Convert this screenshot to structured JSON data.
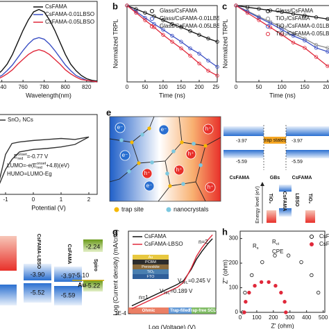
{
  "chart_data": [
    {
      "type": "line",
      "x": [
        735,
        740,
        745,
        750,
        755,
        760,
        765,
        770,
        775,
        780,
        785,
        790,
        795,
        800,
        805,
        810,
        815,
        820,
        825,
        830
      ],
      "xlim": [
        735,
        830
      ],
      "xticks": [
        740,
        760,
        780,
        800,
        820
      ],
      "ylim": [
        0,
        1
      ],
      "yticks": [],
      "xlabel": "Wavelength(nm)",
      "legend": "upper right",
      "series": [
        {
          "name": "CsFAMA",
          "color": "#111111",
          "values": [
            0.08,
            0.14,
            0.22,
            0.34,
            0.49,
            0.64,
            0.77,
            0.87,
            0.9,
            0.87,
            0.77,
            0.64,
            0.49,
            0.34,
            0.22,
            0.14,
            0.08,
            0.04,
            0.02,
            0.01
          ]
        },
        {
          "name": "CsFAMA-0.01LBSO",
          "color": "#3a4fc4",
          "values": [
            0.05,
            0.08,
            0.14,
            0.21,
            0.3,
            0.39,
            0.47,
            0.53,
            0.55,
            0.53,
            0.47,
            0.39,
            0.3,
            0.21,
            0.14,
            0.08,
            0.05,
            0.02,
            0.01,
            0
          ]
        },
        {
          "name": "CsFAMA-0.05LBSO",
          "color": "#e0283a",
          "values": [
            0.03,
            0.06,
            0.1,
            0.15,
            0.22,
            0.28,
            0.34,
            0.38,
            0.4,
            0.38,
            0.34,
            0.28,
            0.22,
            0.15,
            0.1,
            0.06,
            0.03,
            0.02,
            0.01,
            0
          ]
        }
      ]
    },
    {
      "type": "line",
      "label": "b",
      "markers": true,
      "x": [
        0,
        25,
        50,
        75,
        100,
        125,
        150,
        175,
        200,
        225,
        250
      ],
      "xlim": [
        0,
        250
      ],
      "xticks": [
        0,
        50,
        100,
        150,
        200,
        250
      ],
      "ylog": true,
      "ylim": [
        0.03,
        1
      ],
      "yticks": [],
      "xlabel": "Time (ns)",
      "ylabel": "Normalized TRPL",
      "legend": "upper right",
      "series": [
        {
          "name": "Glass/CsFAMA",
          "color": "#111111",
          "values": [
            1,
            0.85,
            0.72,
            0.61,
            0.51,
            0.43,
            0.37,
            0.31,
            0.26,
            0.22,
            0.19
          ]
        },
        {
          "name": "Glass/CsFAMA-0.01LBSO",
          "color": "#3a4fc4",
          "values": [
            1,
            0.76,
            0.57,
            0.43,
            0.33,
            0.25,
            0.19,
            0.14,
            0.11,
            0.08,
            0.06
          ]
        },
        {
          "name": "Glass/CsFAMA-0.05LBSO",
          "color": "#e0283a",
          "values": [
            1,
            0.72,
            0.51,
            0.37,
            0.26,
            0.19,
            0.14,
            0.1,
            0.07,
            0.05,
            0.04
          ]
        }
      ]
    },
    {
      "type": "line",
      "label": "c",
      "markers": true,
      "x": [
        0,
        25,
        50,
        75,
        100,
        125,
        150,
        175,
        200,
        225,
        250
      ],
      "xlim": [
        0,
        250
      ],
      "xticks": [
        0,
        50,
        100,
        150,
        200
      ],
      "ylog": true,
      "ylim": [
        0.003,
        1
      ],
      "yticks": [],
      "xlabel": "Time (ns)",
      "ylabel": "Normalized TRPL",
      "legend": "upper right",
      "series": [
        {
          "name": "Glass/CsFAMA",
          "color": "#111111",
          "values": [
            1,
            0.88,
            0.78,
            0.69,
            0.61,
            0.53,
            0.47,
            0.41,
            0.36,
            0.32,
            0.28
          ]
        },
        {
          "name": "TiO₂/CsFAMA",
          "color": "#8a8a8a",
          "values": [
            1,
            0.66,
            0.43,
            0.29,
            0.19,
            0.12,
            0.08,
            0.05,
            0.04,
            0.02,
            0.02
          ]
        },
        {
          "name": "TiO₂/CsFAMA-0.01LBSO",
          "color": "#3a4fc4",
          "values": [
            1,
            0.63,
            0.4,
            0.26,
            0.16,
            0.1,
            0.07,
            0.04,
            0.03,
            0.02,
            0.01
          ]
        },
        {
          "name": "TiO₂/CsFAMA-0.05LBSO",
          "color": "#e0283a",
          "values": [
            1,
            0.57,
            0.33,
            0.19,
            0.11,
            0.06,
            0.04,
            0.02,
            0.01,
            0.01,
            0.004
          ]
        }
      ]
    },
    {
      "type": "line",
      "x": [
        -1.3,
        -1,
        -0.77,
        -0.5,
        0,
        0.5,
        1,
        1.5,
        2,
        1.5,
        1,
        0.5,
        0,
        -0.5,
        -0.77,
        -1,
        -1.3
      ],
      "xlim": [
        -1.5,
        2.3
      ],
      "xticks": [
        -1,
        0,
        1,
        2
      ],
      "ylim": [
        -1,
        0.6
      ],
      "yticks": [],
      "xlabel": "Potential (V)",
      "legend": "upper left",
      "series": [
        {
          "name": "SnO₂ NCs",
          "color": "#333333",
          "values": [
            -0.9,
            -0.5,
            -0.3,
            -0.15,
            -0.1,
            -0.08,
            -0.05,
            0,
            0.15,
            0.1,
            0.12,
            0.1,
            0.08,
            0.05,
            0.02,
            -0.2,
            -0.9
          ]
        }
      ],
      "annotations": [
        [
          "E",
          {
            "sub": "red"
          },
          {
            "sup": "onset"
          },
          "=-0.77 V"
        ],
        [
          "LUMO=-e(E",
          {
            "sub": "red"
          },
          {
            "sup": "onset"
          },
          "+4.8)(eV)"
        ],
        [
          "HUMO=LUMO-Eg"
        ]
      ]
    },
    {
      "type": "line",
      "label": "g",
      "x": [
        0.01,
        0.02,
        0.05,
        0.1,
        0.2,
        0.3,
        0.5,
        0.7,
        1,
        1.5,
        2
      ],
      "xlog": true,
      "xlim": [
        0.008,
        2.5
      ],
      "xticks": [],
      "ylog": true,
      "ylim": [
        0.0001,
        10
      ],
      "yticks": [
        {
          "value": 0.0001,
          "label": "1E-4"
        }
      ],
      "xlabel": "Log (Voltage) (V)",
      "ylabel": "Log (Current density) (mA/cm²)",
      "legend": "upper left",
      "series": [
        {
          "name": "CsFAMA",
          "color": "#111111",
          "values": [
            0.0003,
            0.0006,
            0.0015,
            0.003,
            0.006,
            0.01,
            0.05,
            0.2,
            0.6,
            1.8,
            3.5
          ]
        },
        {
          "name": "CsFAMA-LBSO",
          "color": "#e0283a",
          "values": [
            0.0002,
            0.0004,
            0.001,
            0.002,
            0.004,
            0.008,
            0.06,
            0.3,
            1,
            3,
            6
          ]
        }
      ],
      "annotations": [
        [
          "n=2"
        ],
        [
          "n=1"
        ],
        [
          "V",
          {
            "sub": "TFL"
          },
          "=0.245 V"
        ],
        [
          "V",
          {
            "sub": "TFL"
          },
          "=0.189 V"
        ]
      ],
      "regions": [
        "Ohmic",
        "Trap-filled",
        "Trap-free SCLC"
      ],
      "inset_layers": [
        "Au",
        "PCBM",
        "Perovskite",
        "TiO₂",
        "FTO"
      ]
    },
    {
      "type": "scatter",
      "label": "h",
      "xlim": [
        0,
        510
      ],
      "xticks": [
        0,
        100,
        200,
        300,
        400,
        500
      ],
      "ylim": [
        0,
        330
      ],
      "yticks": [
        0,
        100,
        200,
        300
      ],
      "xlabel": "Z' (ohm)",
      "ylabel": "Z'' (ohm)",
      "legend": "upper right",
      "series": [
        {
          "name": "CsFAMA",
          "color": "#111111",
          "marker": "open",
          "x": [
            15,
            29,
            70,
            133,
            209,
            291,
            368,
            430,
            471
          ],
          "values": [
            0,
            80,
            151,
            204,
            231,
            231,
            204,
            151,
            80
          ]
        },
        {
          "name": "CsFAMA-LBSO",
          "color": "#e0283a",
          "marker": "filled",
          "x": [
            25,
            33,
            54,
            88,
            128,
            172,
            213,
            246,
            268,
            275
          ],
          "values": [
            0,
            43,
            80,
            108,
            123,
            123,
            108,
            80,
            43,
            0
          ]
        }
      ],
      "annotations": [
        [
          "R",
          {
            "sub": "s"
          }
        ],
        [
          "R",
          {
            "sub": "ct"
          }
        ],
        [
          "CPE"
        ]
      ]
    }
  ],
  "diagram_e": {
    "label": "e",
    "electron": "e⁻",
    "hole": "h⁺",
    "legend": [
      "trap site",
      "nanocrystals"
    ]
  },
  "diagram_f": {
    "cb": [
      "-3.97",
      "-3.97"
    ],
    "vb": [
      "-5.59",
      "-5.59"
    ],
    "trap": "trap states",
    "columns": [
      "CsFAMA",
      "GBs",
      "CsFAMA"
    ],
    "axis": "Energy level (eV)",
    "layers": [
      "TiO₂",
      "CsFAMA",
      "LBSO",
      "TiO₂"
    ]
  },
  "energy_levels": {
    "columns": [
      {
        "name": "CsFAMA-LBSO",
        "lumo": "-3.90",
        "homo": "-5.52"
      },
      {
        "name": "CsFAMA",
        "lumo": "-3.97",
        "homo": "-5.59"
      },
      {
        "name": "Spiro",
        "lumo": "-2.24",
        "homo": "-5.22"
      }
    ],
    "au": {
      "name": "Au",
      "level": "-5.10"
    }
  }
}
